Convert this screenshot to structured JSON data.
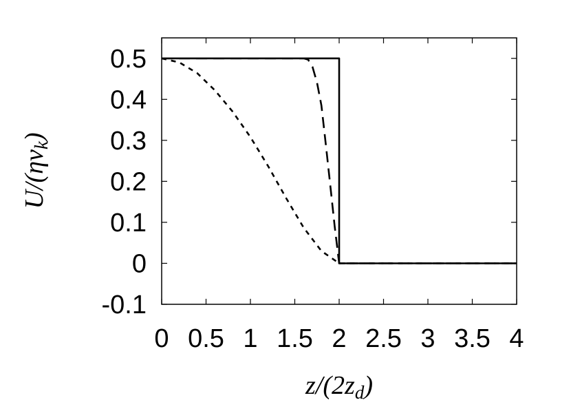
{
  "chart_data": {
    "type": "line",
    "title": "",
    "xlabel_parts": [
      "z/(2z",
      "d",
      ")"
    ],
    "ylabel_parts": [
      "U/(ηv",
      "k",
      ")"
    ],
    "xlim": [
      0,
      4
    ],
    "ylim": [
      -0.1,
      0.55
    ],
    "x_ticks": [
      0,
      0.5,
      1,
      1.5,
      2,
      2.5,
      3,
      3.5,
      4
    ],
    "x_tick_labels": [
      "0",
      "0.5",
      "1",
      "1.5",
      "2",
      "2.5",
      "3",
      "3.5",
      "4"
    ],
    "y_ticks": [
      -0.1,
      0,
      0.1,
      0.2,
      0.3,
      0.4,
      0.5
    ],
    "y_tick_labels": [
      "-0.1",
      "0",
      "0.1",
      "0.2",
      "0.3",
      "0.4",
      "0.5"
    ],
    "grid": false,
    "legend": "none",
    "series": [
      {
        "style": "solid",
        "color": "#000000",
        "x": [
          0,
          2,
          2,
          4
        ],
        "y": [
          0.5,
          0.5,
          0,
          0
        ]
      },
      {
        "style": "long-dash",
        "color": "#000000",
        "x": [
          0,
          1.6,
          1.65,
          1.7,
          1.75,
          1.8,
          1.85,
          1.9,
          1.95,
          2.0,
          4.0
        ],
        "y": [
          0.5,
          0.5,
          0.497,
          0.479,
          0.441,
          0.385,
          0.29,
          0.19,
          0.09,
          0.0,
          0.0
        ]
      },
      {
        "style": "short-dash",
        "color": "#000000",
        "x": [
          0,
          0.2,
          0.4,
          0.6,
          0.8,
          1.0,
          1.2,
          1.4,
          1.6,
          1.8,
          2.0,
          4.0
        ],
        "y": [
          0.5,
          0.49,
          0.464,
          0.422,
          0.37,
          0.308,
          0.237,
          0.16,
          0.087,
          0.03,
          0.0,
          0.0
        ]
      }
    ]
  }
}
